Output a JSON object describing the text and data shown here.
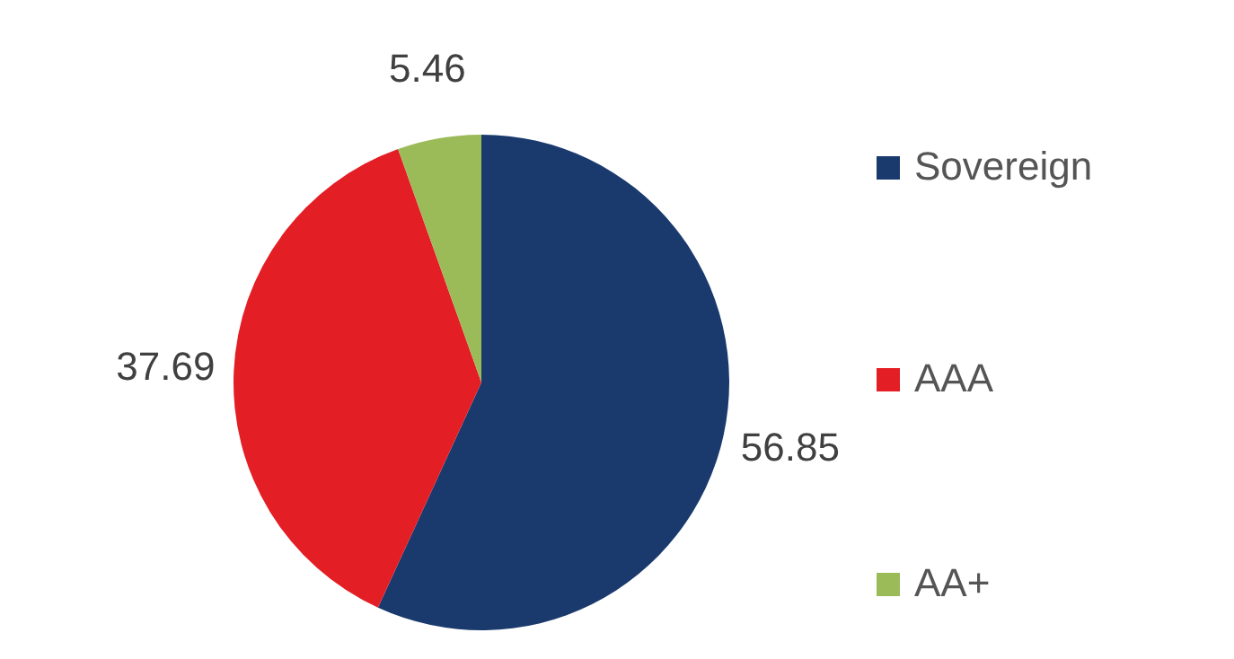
{
  "chart_data": {
    "type": "pie",
    "categories": [
      "Sovereign",
      "AAA",
      "AA+"
    ],
    "values": [
      56.85,
      37.69,
      5.46
    ],
    "colors": [
      "#1a3a6e",
      "#e31e24",
      "#9bbb59"
    ],
    "data_labels": true,
    "legend": "right"
  }
}
